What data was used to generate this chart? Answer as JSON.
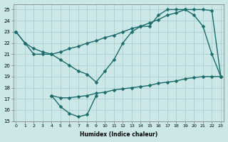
{
  "xlabel": "Humidex (Indice chaleur)",
  "background_color": "#cce8e6",
  "grid_color": "#aacfcd",
  "line_color": "#1a6b6b",
  "ylim": [
    15,
    25.5
  ],
  "xlim": [
    -0.3,
    23.3
  ],
  "yticks": [
    15,
    16,
    17,
    18,
    19,
    20,
    21,
    22,
    23,
    24,
    25
  ],
  "xticks": [
    0,
    1,
    2,
    3,
    4,
    5,
    6,
    7,
    8,
    9,
    10,
    11,
    12,
    13,
    14,
    15,
    16,
    17,
    18,
    19,
    20,
    21,
    22,
    23
  ],
  "line_a_x": [
    0,
    1,
    2,
    3,
    4,
    5,
    6,
    7,
    8,
    9,
    10,
    11,
    12,
    13,
    14,
    15,
    16,
    17,
    18,
    19,
    20,
    21,
    22,
    23
  ],
  "line_a_y": [
    23,
    22,
    21.5,
    21.2,
    21.0,
    21.2,
    21.5,
    21.7,
    22.0,
    22.2,
    22.5,
    22.7,
    23.0,
    23.3,
    23.5,
    23.8,
    24.1,
    24.5,
    24.7,
    25.0,
    25.0,
    25.0,
    24.9,
    19.0
  ],
  "line_b_x": [
    0,
    1,
    2,
    3,
    4,
    5,
    6,
    7,
    8,
    9,
    10,
    11,
    12,
    13,
    14,
    15,
    16,
    17,
    18,
    19,
    20,
    21,
    22,
    23
  ],
  "line_b_y": [
    23,
    22,
    21,
    21,
    21,
    20.5,
    20.0,
    19.5,
    19.2,
    18.5,
    19.5,
    20.5,
    22.0,
    23.0,
    23.5,
    23.5,
    24.5,
    25.0,
    25.0,
    25.0,
    24.5,
    23.5,
    21.0,
    19.0
  ],
  "line_c_x": [
    4,
    5,
    6,
    7,
    8,
    9
  ],
  "line_c_y": [
    17.3,
    16.3,
    15.7,
    15.4,
    15.6,
    17.3
  ],
  "line_d_x": [
    4,
    5,
    6,
    7,
    8,
    9,
    10,
    11,
    12,
    13,
    14,
    15,
    16,
    17,
    18,
    19,
    20,
    21,
    22,
    23
  ],
  "line_d_y": [
    17.3,
    17.1,
    17.1,
    17.2,
    17.3,
    17.5,
    17.6,
    17.8,
    17.9,
    18.0,
    18.1,
    18.2,
    18.4,
    18.5,
    18.6,
    18.8,
    18.9,
    19.0,
    19.0,
    19.0
  ]
}
